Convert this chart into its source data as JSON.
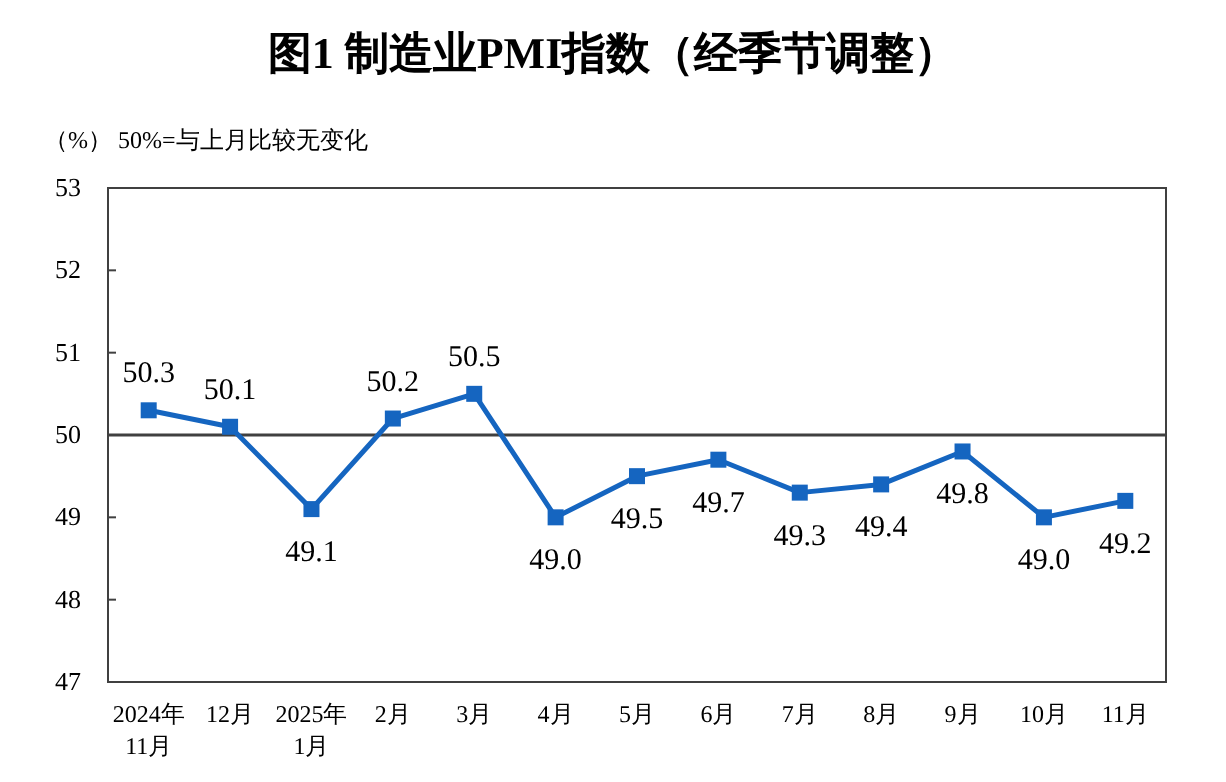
{
  "chart_data": {
    "type": "line",
    "title": "图1  制造业PMI指数（经季节调整）",
    "ylabel": "（%）  50%=与上月比较无变化",
    "categories": [
      "2024年\n11月",
      "12月",
      "2025年\n1月",
      "2月",
      "3月",
      "4月",
      "5月",
      "6月",
      "7月",
      "8月",
      "9月",
      "10月",
      "11月"
    ],
    "series": [
      {
        "color": "#1565c0",
        "values": [
          50.3,
          50.1,
          49.1,
          50.2,
          50.5,
          49.0,
          49.5,
          49.7,
          49.3,
          49.4,
          49.8,
          49.0,
          49.2
        ],
        "value_labels": [
          "50.3",
          "50.1",
          "49.1",
          "50.2",
          "50.5",
          "49.0",
          "49.5",
          "49.7",
          "49.3",
          "49.4",
          "49.8",
          "49.0",
          "49.2"
        ]
      }
    ],
    "ylim": [
      47,
      53
    ],
    "yticks": [
      47,
      48,
      49,
      50,
      51,
      52,
      53
    ],
    "ref_lines": [
      {
        "axis": "y",
        "value": 50,
        "color": "#404040"
      }
    ],
    "marker": "square",
    "line_style": "solid",
    "grid": false
  }
}
